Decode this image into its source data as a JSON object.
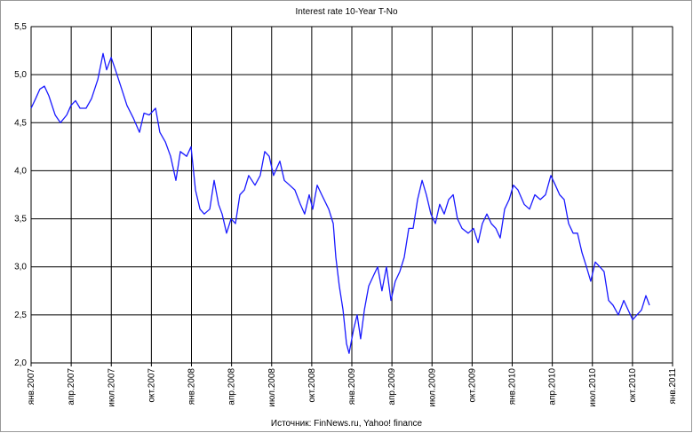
{
  "chart_data": {
    "type": "line",
    "title": "Interest rate 10-Year T-No",
    "source": "Источник: FinNews.ru, Yahoo! finance",
    "xlim": [
      2007,
      2011
    ],
    "xticks": [
      {
        "value": 2007,
        "label": "янв.2007"
      },
      {
        "value": 2007.25,
        "label": "апр.2007"
      },
      {
        "value": 2007.5,
        "label": "июл.2007"
      },
      {
        "value": 2007.75,
        "label": "окт.2007"
      },
      {
        "value": 2008,
        "label": "янв.2008"
      },
      {
        "value": 2008.25,
        "label": "апр.2008"
      },
      {
        "value": 2008.5,
        "label": "июл.2008"
      },
      {
        "value": 2008.75,
        "label": "окт.2008"
      },
      {
        "value": 2009,
        "label": "янв.2009"
      },
      {
        "value": 2009.25,
        "label": "апр.2009"
      },
      {
        "value": 2009.5,
        "label": "июл.2009"
      },
      {
        "value": 2009.75,
        "label": "окт.2009"
      },
      {
        "value": 2010,
        "label": "янв.2010"
      },
      {
        "value": 2010.25,
        "label": "апр.2010"
      },
      {
        "value": 2010.5,
        "label": "июл.2010"
      },
      {
        "value": 2010.75,
        "label": "окт.2010"
      },
      {
        "value": 2011,
        "label": "янв.2011"
      }
    ],
    "ylim": [
      2,
      5.5
    ],
    "yticks": [
      {
        "value": 2,
        "label": "2,0"
      },
      {
        "value": 2.5,
        "label": "2,5"
      },
      {
        "value": 3,
        "label": "3,0"
      },
      {
        "value": 3.5,
        "label": "3,5"
      },
      {
        "value": 4,
        "label": "4,0"
      },
      {
        "value": 4.5,
        "label": "4,5"
      },
      {
        "value": 5,
        "label": "5,0"
      },
      {
        "value": 5.5,
        "label": "5,5"
      }
    ],
    "grid": true,
    "series": [
      {
        "color": "#1a1aff",
        "x": [
          2007.0,
          2007.028,
          2007.055,
          2007.083,
          2007.111,
          2007.15,
          2007.183,
          2007.222,
          2007.249,
          2007.277,
          2007.305,
          2007.343,
          2007.377,
          2007.416,
          2007.449,
          2007.471,
          2007.499,
          2007.526,
          2007.565,
          2007.598,
          2007.637,
          2007.676,
          2007.704,
          2007.737,
          2007.776,
          2007.803,
          2007.837,
          2007.87,
          2007.903,
          2007.931,
          2007.97,
          2007.997,
          2008.025,
          2008.053,
          2008.08,
          2008.114,
          2008.141,
          2008.169,
          2008.191,
          2008.219,
          2008.247,
          2008.274,
          2008.302,
          2008.33,
          2008.357,
          2008.396,
          2008.429,
          2008.457,
          2008.485,
          2008.512,
          2008.551,
          2008.579,
          2008.612,
          2008.645,
          2008.679,
          2008.706,
          2008.734,
          2008.756,
          2008.784,
          2008.812,
          2008.856,
          2008.884,
          2008.9,
          2008.922,
          2008.945,
          2008.967,
          2008.983,
          2009.011,
          2009.033,
          2009.055,
          2009.078,
          2009.105,
          2009.133,
          2009.161,
          2009.188,
          2009.216,
          2009.244,
          2009.271,
          2009.299,
          2009.327,
          2009.355,
          2009.382,
          2009.41,
          2009.438,
          2009.465,
          2009.493,
          2009.521,
          2009.548,
          2009.576,
          2009.604,
          2009.632,
          2009.659,
          2009.687,
          2009.726,
          2009.759,
          2009.787,
          2009.814,
          2009.842,
          2009.87,
          2009.898,
          2009.925,
          2009.953,
          2009.981,
          2010.008,
          2010.036,
          2010.075,
          2010.108,
          2010.141,
          2010.175,
          2010.208,
          2010.241,
          2010.269,
          2010.296,
          2010.324,
          2010.352,
          2010.38,
          2010.407,
          2010.435,
          2010.463,
          2010.49,
          2010.518,
          2010.546,
          2010.573,
          2010.601,
          2010.629,
          2010.662,
          2010.696,
          2010.723,
          2010.751,
          2010.778,
          2010.806,
          2010.834,
          2010.856
        ],
        "values": [
          4.65,
          4.75,
          4.85,
          4.88,
          4.78,
          4.58,
          4.5,
          4.58,
          4.68,
          4.73,
          4.65,
          4.65,
          4.75,
          4.95,
          5.22,
          5.05,
          5.18,
          5.05,
          4.85,
          4.68,
          4.55,
          4.4,
          4.6,
          4.58,
          4.65,
          4.4,
          4.3,
          4.15,
          3.9,
          4.2,
          4.15,
          4.25,
          3.8,
          3.6,
          3.55,
          3.6,
          3.9,
          3.65,
          3.55,
          3.35,
          3.5,
          3.45,
          3.75,
          3.8,
          3.95,
          3.85,
          3.95,
          4.2,
          4.15,
          3.95,
          4.1,
          3.9,
          3.85,
          3.8,
          3.65,
          3.55,
          3.75,
          3.6,
          3.85,
          3.75,
          3.6,
          3.45,
          3.1,
          2.8,
          2.55,
          2.2,
          2.1,
          2.35,
          2.5,
          2.25,
          2.55,
          2.8,
          2.9,
          3.0,
          2.75,
          3.0,
          2.65,
          2.85,
          2.95,
          3.1,
          3.4,
          3.4,
          3.7,
          3.9,
          3.75,
          3.55,
          3.45,
          3.65,
          3.55,
          3.7,
          3.75,
          3.5,
          3.4,
          3.35,
          3.4,
          3.25,
          3.45,
          3.55,
          3.45,
          3.4,
          3.3,
          3.6,
          3.7,
          3.85,
          3.8,
          3.65,
          3.6,
          3.75,
          3.7,
          3.75,
          3.95,
          3.85,
          3.75,
          3.7,
          3.45,
          3.35,
          3.35,
          3.15,
          3.0,
          2.85,
          3.05,
          3.0,
          2.95,
          2.65,
          2.6,
          2.5,
          2.65,
          2.55,
          2.45,
          2.5,
          2.55,
          2.7,
          2.6
        ]
      }
    ]
  }
}
